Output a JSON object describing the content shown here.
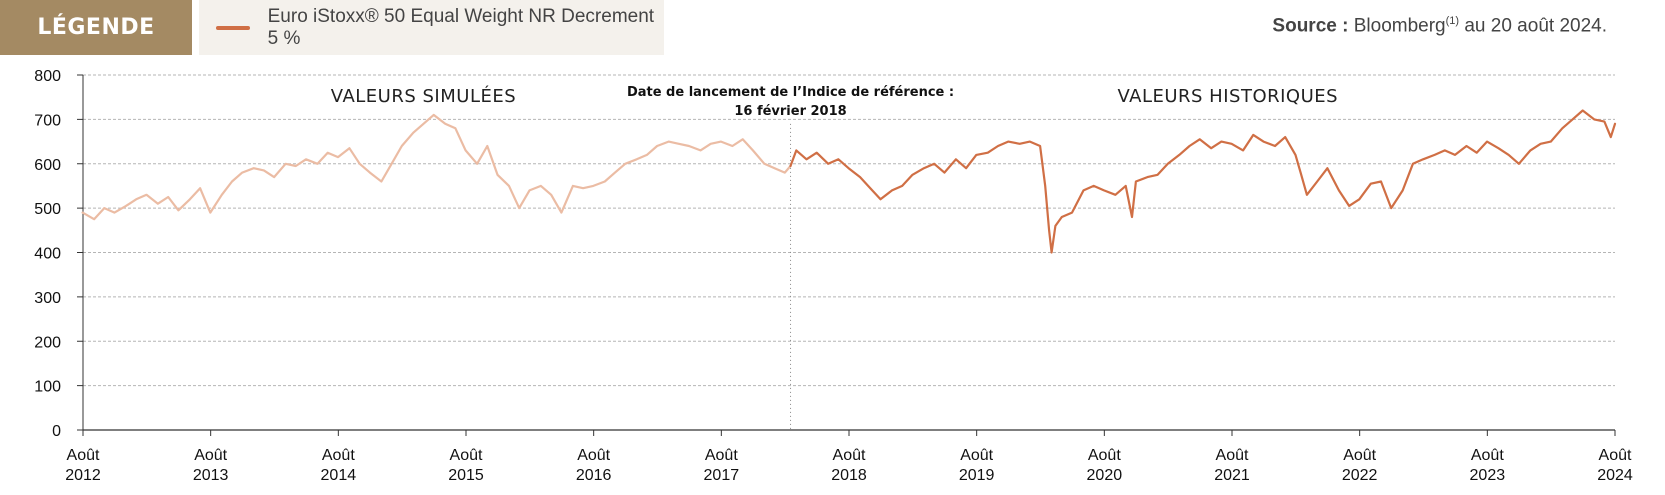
{
  "legend": {
    "tag": "LÉGENDE",
    "series_label": "Euro iStoxx® 50 Equal Weight NR Decrement 5 %"
  },
  "source": {
    "bold": "Source :",
    "text": "Bloomberg",
    "sup": "(1)",
    "rest": "au 20 août 2024."
  },
  "colors": {
    "historical": "#d06f45",
    "simulated": "#ebbca4",
    "legend_tag_bg": "#a48a63",
    "grid": "#b5b5b5"
  },
  "chart_data": {
    "type": "line",
    "title": "",
    "xlabel": "",
    "ylabel": "",
    "ylim": [
      0,
      800
    ],
    "yticks": [
      0,
      100,
      200,
      300,
      400,
      500,
      600,
      700,
      800
    ],
    "xlim": [
      2012.583,
      2024.583
    ],
    "xticks": [
      {
        "value": 2012.583,
        "line1": "Août",
        "line2": "2012"
      },
      {
        "value": 2013.583,
        "line1": "Août",
        "line2": "2013"
      },
      {
        "value": 2014.583,
        "line1": "Août",
        "line2": "2014"
      },
      {
        "value": 2015.583,
        "line1": "Août",
        "line2": "2015"
      },
      {
        "value": 2016.583,
        "line1": "Août",
        "line2": "2016"
      },
      {
        "value": 2017.583,
        "line1": "Août",
        "line2": "2017"
      },
      {
        "value": 2018.583,
        "line1": "Août",
        "line2": "2018"
      },
      {
        "value": 2019.583,
        "line1": "Août",
        "line2": "2019"
      },
      {
        "value": 2020.583,
        "line1": "Août",
        "line2": "2020"
      },
      {
        "value": 2021.583,
        "line1": "Août",
        "line2": "2021"
      },
      {
        "value": 2022.583,
        "line1": "Août",
        "line2": "2022"
      },
      {
        "value": 2023.583,
        "line1": "Août",
        "line2": "2023"
      },
      {
        "value": 2024.583,
        "line1": "Août",
        "line2": "2024"
      }
    ],
    "grid": "horizontal dashed",
    "legend": "top-left",
    "annotations": {
      "simulated_label": "VALEURS SIMULÉES",
      "historical_label": "VALEURS HISTORIQUES",
      "launch_line1": "Date de lancement de l’Indice de référence :",
      "launch_line2": "16 février 2018",
      "launch_x": 2018.125
    },
    "series": [
      {
        "name": "VALEURS SIMULÉES",
        "x": [
          2012.58,
          2012.67,
          2012.75,
          2012.83,
          2012.92,
          2013.0,
          2013.08,
          2013.17,
          2013.25,
          2013.33,
          2013.42,
          2013.5,
          2013.58,
          2013.67,
          2013.75,
          2013.83,
          2013.92,
          2014.0,
          2014.08,
          2014.17,
          2014.25,
          2014.33,
          2014.42,
          2014.5,
          2014.58,
          2014.67,
          2014.75,
          2014.83,
          2014.92,
          2015.0,
          2015.08,
          2015.17,
          2015.25,
          2015.33,
          2015.42,
          2015.5,
          2015.58,
          2015.67,
          2015.75,
          2015.83,
          2015.92,
          2016.0,
          2016.08,
          2016.17,
          2016.25,
          2016.33,
          2016.42,
          2016.5,
          2016.58,
          2016.67,
          2016.75,
          2016.83,
          2016.92,
          2017.0,
          2017.08,
          2017.17,
          2017.25,
          2017.33,
          2017.42,
          2017.5,
          2017.58,
          2017.67,
          2017.75,
          2017.83,
          2017.92,
          2018.0,
          2018.08,
          2018.125
        ],
        "y": [
          490,
          475,
          500,
          490,
          505,
          520,
          530,
          510,
          525,
          495,
          520,
          545,
          490,
          530,
          560,
          580,
          590,
          585,
          570,
          600,
          595,
          610,
          600,
          625,
          615,
          635,
          600,
          580,
          560,
          600,
          640,
          670,
          690,
          710,
          690,
          680,
          630,
          600,
          640,
          575,
          550,
          500,
          540,
          550,
          530,
          490,
          550,
          545,
          550,
          560,
          580,
          600,
          610,
          620,
          640,
          650,
          645,
          640,
          630,
          645,
          650,
          640,
          655,
          630,
          600,
          590,
          580,
          595
        ]
      },
      {
        "name": "VALEURS HISTORIQUES",
        "x": [
          2018.125,
          2018.17,
          2018.25,
          2018.33,
          2018.42,
          2018.5,
          2018.58,
          2018.67,
          2018.75,
          2018.83,
          2018.92,
          2019.0,
          2019.08,
          2019.17,
          2019.25,
          2019.33,
          2019.42,
          2019.5,
          2019.58,
          2019.67,
          2019.75,
          2019.83,
          2019.92,
          2020.0,
          2020.08,
          2020.12,
          2020.15,
          2020.17,
          2020.2,
          2020.25,
          2020.33,
          2020.42,
          2020.5,
          2020.58,
          2020.67,
          2020.75,
          2020.8,
          2020.83,
          2020.92,
          2021.0,
          2021.08,
          2021.17,
          2021.25,
          2021.33,
          2021.42,
          2021.5,
          2021.58,
          2021.67,
          2021.75,
          2021.83,
          2021.92,
          2022.0,
          2022.08,
          2022.12,
          2022.17,
          2022.25,
          2022.33,
          2022.42,
          2022.5,
          2022.58,
          2022.67,
          2022.75,
          2022.83,
          2022.92,
          2023.0,
          2023.08,
          2023.17,
          2023.25,
          2023.33,
          2023.42,
          2023.5,
          2023.58,
          2023.67,
          2023.75,
          2023.83,
          2023.92,
          2024.0,
          2024.08,
          2024.17,
          2024.25,
          2024.33,
          2024.42,
          2024.5,
          2024.55,
          2024.583
        ],
        "y": [
          595,
          630,
          610,
          625,
          600,
          610,
          590,
          570,
          545,
          520,
          540,
          550,
          575,
          590,
          600,
          580,
          610,
          590,
          620,
          625,
          640,
          650,
          645,
          650,
          640,
          550,
          450,
          400,
          460,
          480,
          490,
          540,
          550,
          540,
          530,
          550,
          480,
          560,
          570,
          575,
          600,
          620,
          640,
          655,
          635,
          650,
          645,
          630,
          665,
          650,
          640,
          660,
          620,
          580,
          530,
          560,
          590,
          540,
          505,
          520,
          555,
          560,
          500,
          540,
          600,
          610,
          620,
          630,
          620,
          640,
          625,
          650,
          635,
          620,
          600,
          630,
          645,
          650,
          680,
          700,
          720,
          700,
          695,
          660,
          690
        ]
      }
    ]
  }
}
